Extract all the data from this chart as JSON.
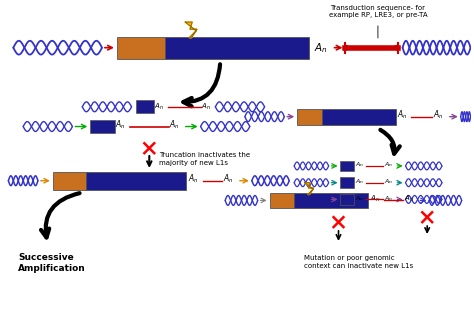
{
  "bg_color": "#ffffff",
  "dna_color": "#3333cc",
  "l1_color": "#1a1a8c",
  "orf_color": "#c87020",
  "red_color": "#cc0000",
  "black": "#000000",
  "lightning_color": "#f0b800",
  "green_c": "#00aa00",
  "teal_c": "#008888",
  "orange_c": "#dd8800",
  "purple_c": "#884499",
  "annotation1": "Transduction sequence- for\nexample RP, LRE3, or pre-TA",
  "annotation2": "Truncation inactivates the\nmajority of new L1s",
  "annotation3": "Mutation or poor genomic\ncontext can inactivate new L1s",
  "annotation4": "Successive\nAmplification"
}
